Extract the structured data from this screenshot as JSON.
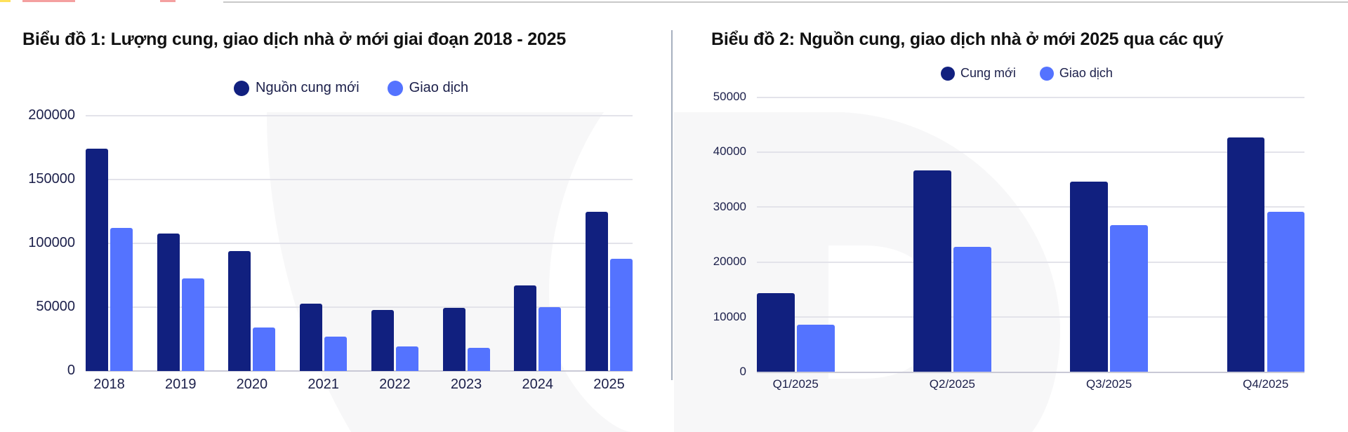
{
  "colors": {
    "supply": "#11207f",
    "transactions": "#5473ff",
    "tick_text": "#1b1f4a",
    "title_text": "#111111",
    "gridline": "#e3e3ea",
    "divider": "#a7b0bf"
  },
  "chart1": {
    "title": "Biểu đồ 1: Lượng cung, giao dịch nhà ở mới giai đoạn 2018 - 2025",
    "legend": [
      {
        "label": "Nguồn cung mới",
        "color": "#11207f"
      },
      {
        "label": "Giao dịch",
        "color": "#5473ff"
      }
    ],
    "y_ticks": [
      "200000",
      "150000",
      "100000",
      "50000",
      "0"
    ],
    "x_ticks": [
      "2018",
      "2019",
      "2020",
      "2021",
      "2022",
      "2023",
      "2024",
      "2025"
    ]
  },
  "chart2": {
    "title": "Biểu đồ 2: Nguồn cung, giao dịch nhà ở mới 2025 qua các quý",
    "legend": [
      {
        "label": "Cung mới",
        "color": "#11207f"
      },
      {
        "label": "Giao dịch",
        "color": "#5473ff"
      }
    ],
    "y_ticks": [
      "50000",
      "40000",
      "30000",
      "20000",
      "10000",
      "0"
    ],
    "x_ticks": [
      "Q1/2025",
      "Q2/2025",
      "Q3/2025",
      "Q4/2025"
    ]
  },
  "chart_data": [
    {
      "type": "bar",
      "title": "Biểu đồ 1: Lượng cung, giao dịch nhà ở mới giai đoạn 2018 - 2025",
      "categories": [
        "2018",
        "2019",
        "2020",
        "2021",
        "2022",
        "2023",
        "2024",
        "2025"
      ],
      "series": [
        {
          "name": "Nguồn cung mới",
          "color": "#11207f",
          "values": [
            174000,
            107500,
            94000,
            53000,
            48000,
            49700,
            67000,
            125000
          ]
        },
        {
          "name": "Giao dịch",
          "color": "#5473ff",
          "values": [
            112000,
            72700,
            34000,
            27000,
            19000,
            18000,
            50000,
            88000
          ]
        }
      ],
      "xlabel": "",
      "ylabel": "",
      "ylim": [
        0,
        200000
      ],
      "yticks": [
        0,
        50000,
        100000,
        150000,
        200000
      ],
      "grid": true,
      "legend_position": "top-center"
    },
    {
      "type": "bar",
      "title": "Biểu đồ 2: Nguồn cung, giao dịch nhà ở mới 2025 qua các quý",
      "categories": [
        "Q1/2025",
        "Q2/2025",
        "Q3/2025",
        "Q4/2025"
      ],
      "series": [
        {
          "name": "Cung mới",
          "color": "#11207f",
          "values": [
            14400,
            36700,
            34600,
            42700
          ]
        },
        {
          "name": "Giao dịch",
          "color": "#5473ff",
          "values": [
            8600,
            22800,
            26700,
            29100
          ]
        }
      ],
      "xlabel": "",
      "ylabel": "",
      "ylim": [
        0,
        50000
      ],
      "yticks": [
        0,
        10000,
        20000,
        30000,
        40000,
        50000
      ],
      "grid": true,
      "legend_position": "top-center"
    }
  ]
}
